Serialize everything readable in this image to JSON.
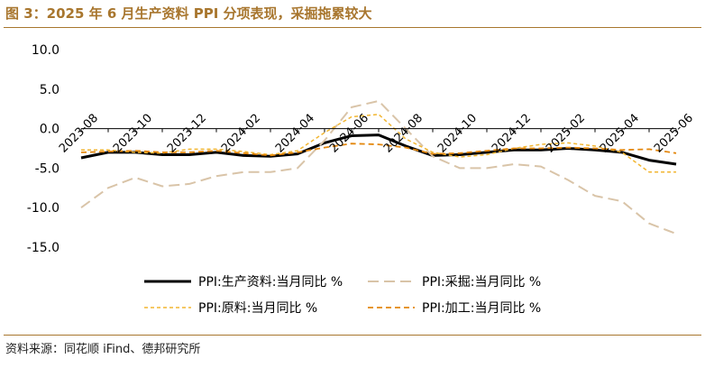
{
  "title": "图 3：2025 年 6 月生产资料 PPI 分项表现，采掘拖累较大",
  "source": "资料来源：同花顺 iFind、德邦研究所",
  "colors": {
    "title": "#a8762e",
    "production": "#000000",
    "mining": "#d9c4a8",
    "raw": "#f2b631",
    "processing": "#e3870d"
  },
  "chart_data": {
    "type": "line",
    "x": [
      "2023-08",
      "2023-09",
      "2023-10",
      "2023-11",
      "2023-12",
      "2024-01",
      "2024-02",
      "2024-03",
      "2024-04",
      "2024-05",
      "2024-06",
      "2024-07",
      "2024-08",
      "2024-09",
      "2024-10",
      "2024-11",
      "2024-12",
      "2025-01",
      "2025-02",
      "2025-03",
      "2025-04",
      "2025-05",
      "2025-06"
    ],
    "x_tick_labels": [
      "2023-08",
      "2023-10",
      "2023-12",
      "2024-02",
      "2024-04",
      "2024-06",
      "2024-08",
      "2024-10",
      "2024-12",
      "2025-02",
      "2025-04",
      "2025-06"
    ],
    "y_ticks": [
      "10.0",
      "5.0",
      "0.0",
      "-5.0",
      "-10.0",
      "-15.0"
    ],
    "ylim": [
      -15,
      10
    ],
    "legend_position": "bottom",
    "series": [
      {
        "name": "PPI:生产资料:当月同比 %",
        "color": "#000000",
        "dash": "solid",
        "width": 3,
        "values": [
          -3.7,
          -3.0,
          -3.0,
          -3.3,
          -3.3,
          -3.0,
          -3.4,
          -3.5,
          -3.2,
          -1.8,
          -0.9,
          -0.8,
          -2.2,
          -3.4,
          -3.3,
          -3.0,
          -2.7,
          -2.7,
          -2.5,
          -2.7,
          -3.0,
          -4.0,
          -4.5
        ]
      },
      {
        "name": "PPI:采掘:当月同比 %",
        "color": "#d9c4a8",
        "dash": "long",
        "width": 2,
        "values": [
          -10.0,
          -7.5,
          -6.2,
          -7.3,
          -7.0,
          -6.0,
          -5.5,
          -5.5,
          -5.0,
          -1.5,
          2.7,
          3.5,
          0.0,
          -3.5,
          -5.0,
          -5.0,
          -4.5,
          -4.8,
          -6.5,
          -8.5,
          -9.2,
          -12.0,
          -13.3
        ]
      },
      {
        "name": "PPI:原料:当月同比 %",
        "color": "#f2b631",
        "dash": "short",
        "width": 1.5,
        "values": [
          -2.7,
          -2.7,
          -3.0,
          -3.1,
          -2.6,
          -2.6,
          -2.9,
          -3.3,
          -2.8,
          -0.5,
          1.5,
          1.8,
          -1.3,
          -3.0,
          -3.6,
          -3.3,
          -2.5,
          -2.0,
          -1.8,
          -2.2,
          -3.0,
          -5.5,
          -5.5
        ]
      },
      {
        "name": "PPI:加工:当月同比 %",
        "color": "#e3870d",
        "dash": "medium",
        "width": 1.8,
        "values": [
          -3.0,
          -2.9,
          -2.8,
          -3.0,
          -3.0,
          -2.8,
          -3.1,
          -3.4,
          -3.0,
          -2.4,
          -1.9,
          -2.0,
          -2.4,
          -3.2,
          -3.1,
          -2.8,
          -2.5,
          -2.5,
          -2.4,
          -2.5,
          -2.7,
          -2.6,
          -3.1
        ]
      }
    ]
  }
}
